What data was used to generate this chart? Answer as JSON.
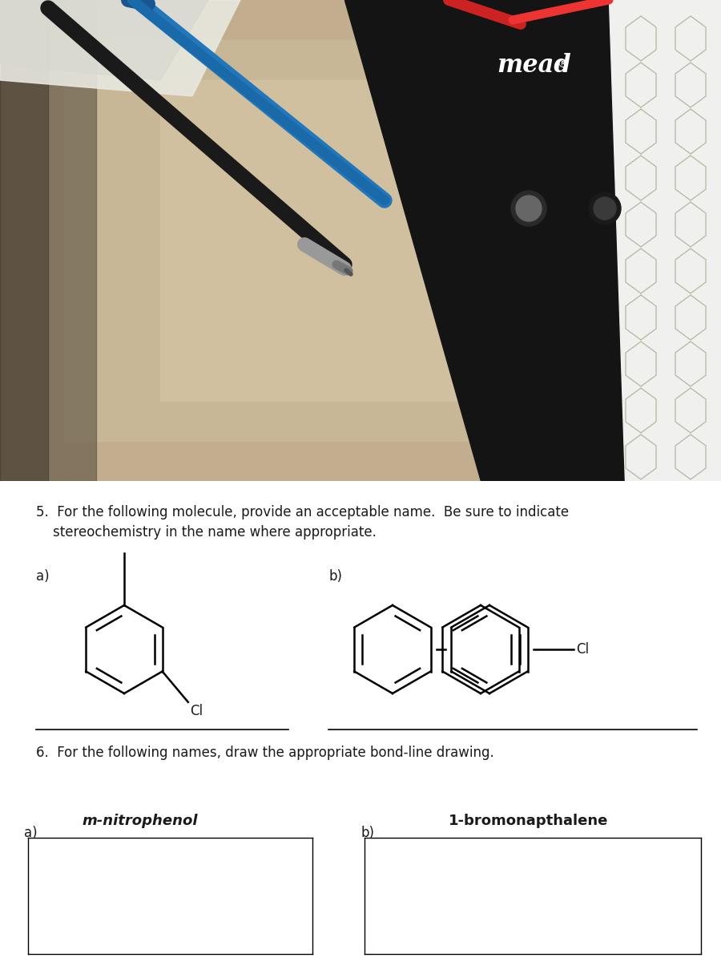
{
  "desk_color": "#c8b898",
  "notebook_color": "#111111",
  "hex_fill_color": "#e8e8e0",
  "hex_line_color": "#ccccbb",
  "mead_text_color": "white",
  "paper_bg_color": "white",
  "text_color": "#1a1a1a",
  "question5_text_line1": "5.  For the following molecule, provide an acceptable name.  Be sure to indicate",
  "question5_text_line2": "    stereochemistry in the name where appropriate.",
  "question6_text": "6.  For the following names, draw the appropriate bond-line drawing.",
  "label_a": "a)",
  "label_b": "b)",
  "mol5a_ci_label": "Cl",
  "mol5b_ci_label": "Cl",
  "answer6a_label": "m-nitrophenol",
  "answer6b_label": "1-bromonapthalene",
  "lw": 1.8
}
